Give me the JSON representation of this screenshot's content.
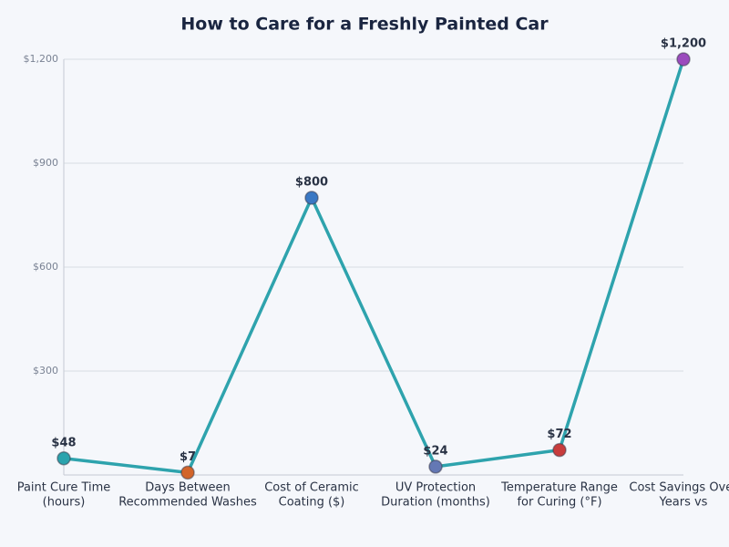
{
  "chart_data": {
    "type": "line",
    "title": "How to Care for a Freshly Painted Car",
    "categories": [
      [
        "Paint Cure Time",
        "(hours)"
      ],
      [
        "Days Between",
        "Recommended Washes"
      ],
      [
        "Cost of Ceramic",
        "Coating ($)"
      ],
      [
        "UV Protection",
        "Duration (months)"
      ],
      [
        "Temperature Range",
        "for Curing (°F)"
      ],
      [
        "Cost Savings Over",
        "Years vs"
      ]
    ],
    "values": [
      48,
      7,
      800,
      24,
      72,
      1200
    ],
    "value_labels": [
      "$48",
      "$7",
      "$800",
      "$24",
      "$72",
      "$1,200"
    ],
    "color": "#2ea3ad",
    "marker_colors": [
      "#2aa3ad",
      "#d2642a",
      "#3a78c4",
      "#6478b4",
      "#c83c3c",
      "#9b4bbd"
    ],
    "ylim": [
      0,
      1200
    ],
    "yticks": [
      {
        "value": 300,
        "label": "$300"
      },
      {
        "value": 600,
        "label": "$600"
      },
      {
        "value": 900,
        "label": "$900"
      },
      {
        "value": 1200,
        "label": "$1,200"
      }
    ],
    "grid": true
  }
}
